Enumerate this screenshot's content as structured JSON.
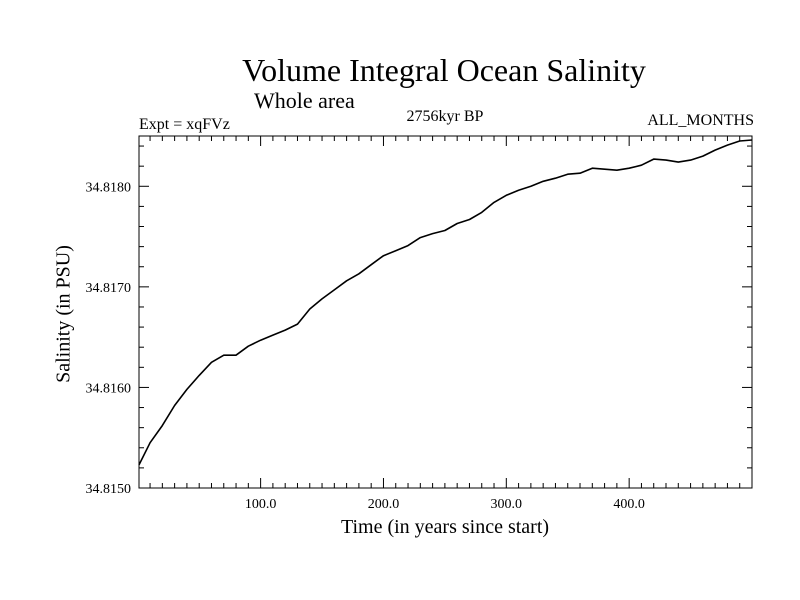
{
  "chart_data": {
    "type": "line",
    "title": "Volume Integral Ocean Salinity",
    "subtitle": "Whole area",
    "experiment_label": "Expt = xqFVz",
    "period_label": "2756kyr BP",
    "months_label": "ALL_MONTHS",
    "xlabel": "Time (in years since start)",
    "ylabel": "Salinity (in PSU)",
    "xlim": [
      1,
      500
    ],
    "ylim": [
      34.815,
      34.8185
    ],
    "xticks": [
      100,
      200,
      300,
      400
    ],
    "xtick_labels": [
      "100.0",
      "200.0",
      "300.0",
      "400.0"
    ],
    "yticks": [
      34.815,
      34.816,
      34.817,
      34.818
    ],
    "ytick_labels": [
      "34.8150",
      "34.8160",
      "34.8170",
      "34.8180"
    ],
    "grid": false,
    "series": [
      {
        "name": "Salinity",
        "x": [
          1,
          10,
          20,
          30,
          40,
          50,
          60,
          70,
          80,
          90,
          100,
          110,
          120,
          130,
          140,
          150,
          160,
          170,
          180,
          190,
          200,
          210,
          220,
          230,
          240,
          250,
          260,
          270,
          280,
          290,
          300,
          310,
          320,
          330,
          340,
          350,
          360,
          370,
          380,
          390,
          400,
          410,
          420,
          430,
          440,
          450,
          460,
          470,
          480,
          490,
          500
        ],
        "values": [
          34.81523,
          34.81545,
          34.81562,
          34.81582,
          34.81598,
          34.81612,
          34.81625,
          34.81632,
          34.81632,
          34.81641,
          34.81647,
          34.81652,
          34.81657,
          34.81663,
          34.81678,
          34.81688,
          34.81697,
          34.81706,
          34.81713,
          34.81722,
          34.81731,
          34.81736,
          34.81741,
          34.81749,
          34.81753,
          34.81756,
          34.81763,
          34.81767,
          34.81774,
          34.81784,
          34.81791,
          34.81796,
          34.818,
          34.81805,
          34.81808,
          34.81812,
          34.81813,
          34.81818,
          34.81817,
          34.81816,
          34.81818,
          34.81821,
          34.81827,
          34.81826,
          34.81824,
          34.81826,
          34.8183,
          34.81836,
          34.81841,
          34.81845,
          34.81846
        ]
      }
    ]
  }
}
